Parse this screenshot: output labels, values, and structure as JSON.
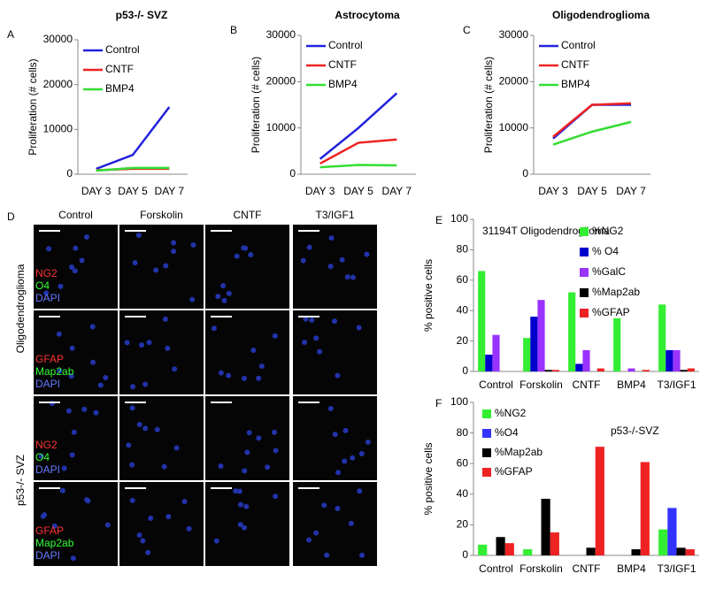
{
  "chart_data": [
    {
      "type": "line",
      "panel_label": "A",
      "title": "p53-/- SVZ",
      "y_label": "Proliferation (# cells)",
      "categories": [
        "DAY 3",
        "DAY 5",
        "DAY 7"
      ],
      "ylim": [
        0,
        30000
      ],
      "yticks": [
        0,
        10000,
        20000,
        30000
      ],
      "series": [
        {
          "name": "Control",
          "color": "#2222dd",
          "values": [
            1200,
            4300,
            15000
          ]
        },
        {
          "name": "CNTF",
          "color": "#ee2222",
          "values": [
            900,
            1200,
            1200
          ]
        },
        {
          "name": "BMP4",
          "color": "#33dd33",
          "values": [
            800,
            1400,
            1400
          ]
        }
      ]
    },
    {
      "type": "line",
      "panel_label": "B",
      "title": "Astrocytoma",
      "y_label": "Proliferation (# cells)",
      "categories": [
        "DAY 3",
        "DAY 5",
        "DAY 7"
      ],
      "ylim": [
        0,
        30000
      ],
      "yticks": [
        0,
        10000,
        20000,
        30000
      ],
      "series": [
        {
          "name": "Control",
          "color": "#2222dd",
          "values": [
            3300,
            10000,
            17500
          ]
        },
        {
          "name": "CNTF",
          "color": "#ee2222",
          "values": [
            2300,
            6800,
            7500
          ]
        },
        {
          "name": "BMP4",
          "color": "#33dd33",
          "values": [
            1500,
            2000,
            1900
          ]
        }
      ]
    },
    {
      "type": "line",
      "panel_label": "C",
      "title": "Oligodendroglioma",
      "y_label": "Proliferation (# cells)",
      "categories": [
        "DAY 3",
        "DAY 5",
        "DAY 7"
      ],
      "ylim": [
        0,
        30000
      ],
      "yticks": [
        0,
        10000,
        20000,
        30000
      ],
      "series": [
        {
          "name": "Control",
          "color": "#2222dd",
          "values": [
            7700,
            15000,
            15000
          ]
        },
        {
          "name": "CNTF",
          "color": "#ee2222",
          "values": [
            8100,
            15000,
            15300
          ]
        },
        {
          "name": "BMP4",
          "color": "#33dd33",
          "values": [
            6400,
            9200,
            11300
          ]
        }
      ]
    },
    {
      "type": "bar",
      "panel_label": "E",
      "annotation": "31194T Oligodendroglioma",
      "y_label": "% positive cells",
      "categories": [
        "Control",
        "Forskolin",
        "CNTF",
        "BMP4",
        "T3/IGF1"
      ],
      "ylim": [
        0,
        100
      ],
      "yticks": [
        0,
        20,
        40,
        60,
        80,
        100
      ],
      "series": [
        {
          "name": "%NG2",
          "color": "#33ee33",
          "values": [
            66,
            22,
            52,
            35,
            44
          ]
        },
        {
          "name": "% O4",
          "color": "#0000cc",
          "values": [
            11,
            36,
            5,
            0,
            14
          ]
        },
        {
          "name": "%GalC",
          "color": "#9933ff",
          "values": [
            24,
            47,
            14,
            2,
            14
          ]
        },
        {
          "name": "%Map2ab",
          "color": "#000000",
          "values": [
            0,
            1,
            0,
            0,
            1
          ]
        },
        {
          "name": "%GFAP",
          "color": "#ee2222",
          "values": [
            0,
            1,
            2,
            1,
            2
          ]
        }
      ]
    },
    {
      "type": "bar",
      "panel_label": "F",
      "annotation": "p53-/-SVZ",
      "y_label": "% positive cells",
      "categories": [
        "Control",
        "Forskolin",
        "CNTF",
        "BMP4",
        "T3/IGF1"
      ],
      "ylim": [
        0,
        100
      ],
      "yticks": [
        0,
        20,
        40,
        60,
        80,
        100
      ],
      "series": [
        {
          "name": "%NG2",
          "color": "#33ee33",
          "values": [
            7,
            4,
            0,
            0,
            17
          ]
        },
        {
          "name": "%O4",
          "color": "#3333ff",
          "values": [
            0,
            0,
            0,
            0,
            31
          ]
        },
        {
          "name": "%Map2ab",
          "color": "#000000",
          "values": [
            12,
            37,
            5,
            4,
            5
          ]
        },
        {
          "name": "%GFAP",
          "color": "#ee2222",
          "values": [
            8,
            15,
            71,
            61,
            4
          ]
        }
      ]
    }
  ],
  "micrograph_panel": {
    "panel_label": "D",
    "columns": [
      "Control",
      "Forskolin",
      "CNTF",
      "T3/IGF1"
    ],
    "row_groups": [
      {
        "label": "Oligodendroglioma",
        "stains": [
          [
            {
              "text": "NG2",
              "color": "#ff3333"
            },
            {
              "text": "O4",
              "color": "#33ff33"
            },
            {
              "text": "DAPI",
              "color": "#6677ff"
            }
          ],
          [
            {
              "text": "GFAP",
              "color": "#ff3333"
            },
            {
              "text": "Map2ab",
              "color": "#33ff33"
            },
            {
              "text": "DAPI",
              "color": "#6677ff"
            }
          ]
        ]
      },
      {
        "label": "p53-/- SVZ",
        "stains": [
          [
            {
              "text": "NG2",
              "color": "#ff3333"
            },
            {
              "text": "O4",
              "color": "#33ff33"
            },
            {
              "text": "DAPI",
              "color": "#6677ff"
            }
          ],
          [
            {
              "text": "GFAP",
              "color": "#ff3333"
            },
            {
              "text": "Map2ab",
              "color": "#33ff33"
            },
            {
              "text": "DAPI",
              "color": "#6677ff"
            }
          ]
        ]
      }
    ]
  }
}
